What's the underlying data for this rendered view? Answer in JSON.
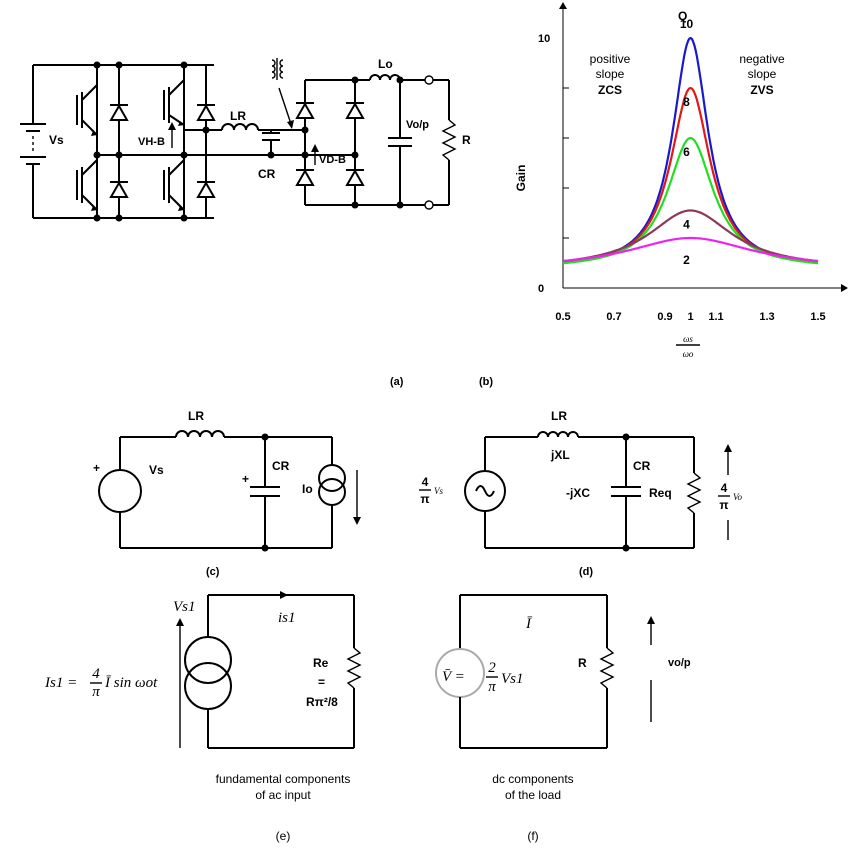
{
  "labels": {
    "vs_a": "Vs",
    "vhb": "VH-B",
    "lr_a": "LR",
    "cr_a": "CR",
    "vdb": "VD-B",
    "lo": "Lo",
    "vop_a": "Vo/p",
    "r_a": "R",
    "caption_a": "(a)",
    "caption_b": "(b)",
    "lr_c": "LR",
    "vs_c": "Vs",
    "cr_c": "CR",
    "io": "Io",
    "plus1": "+",
    "plus2": "+",
    "caption_c": "(c)",
    "lr_d": "LR",
    "jxl": "jXL",
    "jxc": "-jXC",
    "cr_d": "CR",
    "req": "Req",
    "caption_d": "(d)",
    "vs1": "Vs1",
    "is1_small": "is1",
    "re": "Re",
    "eq": "=",
    "re_val": "Rπ²/8",
    "is1_formula_left": "Is1 =",
    "is1_formula_frac_num": "4",
    "is1_formula_frac_den": "π",
    "is1_formula_right": "Ī sin ωot",
    "ibar": "Ī",
    "vbar_left": "V̄ =",
    "vbar_frac_num": "2",
    "vbar_frac_den": "π",
    "vbar_right": "Vs1",
    "r_f": "R",
    "vop_f": "vo/p",
    "caption_e_line1": "fundamental components",
    "caption_e_line2": "of ac input",
    "caption_e": "(e)",
    "caption_f_line1": "dc components",
    "caption_f_line2": "of the load",
    "caption_f": "(f)",
    "four_pi_vs_num": "4",
    "four_pi_vs_den": "π",
    "four_pi_vs_sym": "Vs",
    "four_pi_vo_num": "4",
    "four_pi_vo_den": "π",
    "four_pi_vo_sym": "Vo"
  },
  "chart_data": {
    "type": "line",
    "title": "",
    "xlabel_num": "ωs",
    "xlabel_den": "ωo",
    "ylabel": "Gain",
    "xlim": [
      0.5,
      1.5
    ],
    "ylim": [
      0,
      10
    ],
    "x_ticks": [
      "0.5",
      "0.7",
      "0.9",
      "1",
      "1.1",
      "1.3",
      "1.5"
    ],
    "x_tick_values": [
      0.5,
      0.7,
      0.9,
      1.0,
      1.1,
      1.3,
      1.5
    ],
    "y_ticks": [
      "0",
      "10"
    ],
    "y_tick_values": [
      0,
      10
    ],
    "q_header": "Q",
    "annotations": {
      "left_line1": "positive",
      "left_line2": "slope",
      "left_line3": "ZCS",
      "right_line1": "negative",
      "right_line2": "slope",
      "right_line3": "ZVS"
    },
    "series": [
      {
        "name": "10",
        "color": "#1a1acc",
        "peak": 10.0,
        "halfwidth": 0.085
      },
      {
        "name": "8",
        "color": "#e01818",
        "peak": 8.0,
        "halfwidth": 0.095
      },
      {
        "name": "6",
        "color": "#22dd22",
        "peak": 6.0,
        "halfwidth": 0.11
      },
      {
        "name": "4",
        "color": "#8b3a5a",
        "peak": 3.1,
        "halfwidth": 0.2
      },
      {
        "name": "2",
        "color": "#ee22ee",
        "peak": 2.0,
        "halfwidth": 0.3
      }
    ]
  }
}
